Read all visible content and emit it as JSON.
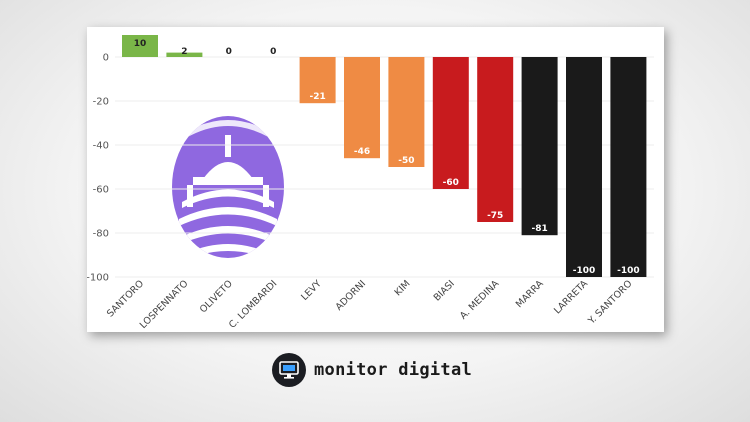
{
  "chart_data": {
    "type": "bar",
    "title": "",
    "xlabel": "",
    "ylabel": "",
    "ylim": [
      -100,
      10
    ],
    "yticks": [
      0,
      -20,
      -40,
      -60,
      -80,
      -100
    ],
    "categories": [
      "SANTORO",
      "LOSPENNATO",
      "OLIVETO",
      "C. LOMBARDI",
      "LEVY",
      "ADORNI",
      "KIM",
      "BIASI",
      "A. MEDINA",
      "MARRA",
      "LARRETA",
      "Y. SANTORO"
    ],
    "values": [
      10,
      2,
      0,
      0,
      -21,
      -46,
      -50,
      -60,
      -75,
      -81,
      -100,
      -100
    ],
    "colors": [
      "#7ab648",
      "#7ab648",
      "#7ab648",
      "#7ab648",
      "#ef8b44",
      "#ef8b44",
      "#ef8b44",
      "#c81b1e",
      "#c81b1e",
      "#1a1a1a",
      "#1a1a1a",
      "#1a1a1a"
    ],
    "grid": true
  },
  "watermark": {
    "icon": "dome-logo-icon",
    "color": "#8f68e0"
  },
  "brand": {
    "name": "monitor digital",
    "icon": "monitor-icon"
  }
}
